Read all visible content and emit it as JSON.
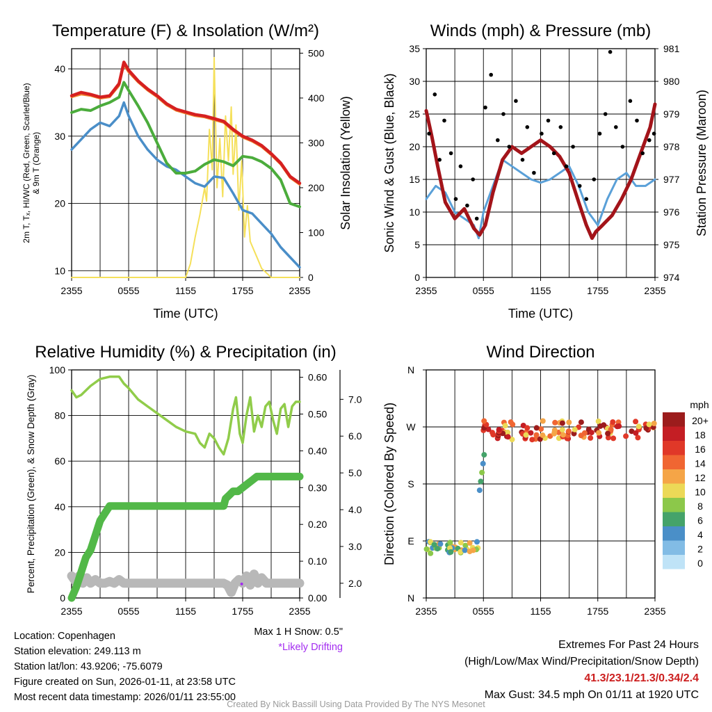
{
  "colors": {
    "red": "#d62020",
    "orange": "#f08a30",
    "green": "#4bac3c",
    "blue": "#4a8ec8",
    "yellow": "#f5e05a",
    "maroon": "#a3141a",
    "sonic_blue": "#5aa0d8",
    "rh_green": "#90cc4a",
    "precip_green": "#52b848",
    "snow_gray": "#b8b8b8",
    "credit_gray": "#999999",
    "extremes_red": "#cc1e1e",
    "drift_purple": "#a32cf0"
  },
  "chart_data": [
    {
      "id": "temp",
      "type": "line",
      "title": "Temperature (F) & Insolation (W/m²)",
      "xlabel": "Time (UTC)",
      "ylabel_lines": [
        "2m T, Tₓ, HI/WC (Red, Green, Scarlet/Blue)",
        "& 9m T (Orange)"
      ],
      "ylabel2": "Solar Insolation (Yellow)",
      "x_ticks": [
        "2355",
        "0555",
        "1155",
        "1755",
        "2355"
      ],
      "ylim": [
        9,
        43
      ],
      "y_ticks": [
        10,
        20,
        30,
        40
      ],
      "y2lim": [
        0,
        510
      ],
      "y2_ticks": [
        0,
        100,
        200,
        300,
        400,
        500
      ],
      "series": [
        {
          "name": "2m Temperature",
          "color": "red",
          "axis": "left",
          "width": 4.5,
          "hours": [
            0,
            1,
            2,
            3,
            4,
            5,
            5.5,
            6,
            7,
            8,
            9,
            10,
            11,
            12,
            13,
            14,
            15,
            16,
            17,
            18,
            19,
            20,
            21,
            22,
            23,
            24
          ],
          "values": [
            36,
            36.5,
            36.2,
            35.8,
            36,
            37.8,
            41,
            39.8,
            38.2,
            37,
            36,
            34.8,
            34,
            33.6,
            33.2,
            33,
            32.6,
            32.2,
            31,
            30,
            29.4,
            28.6,
            27.4,
            26,
            24,
            23
          ]
        },
        {
          "name": "9m Temperature",
          "color": "orange",
          "axis": "left",
          "width": 3,
          "hours": [
            0,
            1,
            2,
            3,
            4,
            5,
            5.5,
            6,
            7,
            8,
            9,
            10,
            11,
            12,
            13,
            14,
            15,
            16,
            17,
            18,
            19,
            20,
            21,
            22,
            23,
            24
          ],
          "values": [
            35.8,
            36.2,
            36,
            35.6,
            35.8,
            37.5,
            40.6,
            39.5,
            38,
            36.8,
            35.8,
            34.6,
            33.8,
            33.4,
            33,
            32.8,
            32.4,
            32,
            30.8,
            29.8,
            29.2,
            28.4,
            27.2,
            25.8,
            23.8,
            22.8
          ]
        },
        {
          "name": "Dewpoint",
          "color": "green",
          "axis": "left",
          "width": 4,
          "hours": [
            0,
            1,
            2,
            3,
            4,
            5,
            5.5,
            6,
            7,
            8,
            9,
            10,
            11,
            12,
            13,
            14,
            15,
            16,
            17,
            18,
            19,
            20,
            21,
            22,
            23,
            24
          ],
          "values": [
            33.5,
            34,
            33.8,
            34.5,
            35,
            35.8,
            38,
            36.8,
            34.5,
            32,
            29,
            26,
            24.5,
            24.5,
            24.8,
            25.8,
            26.5,
            26.2,
            25.6,
            27,
            26.8,
            26.2,
            25.2,
            23.5,
            20,
            19.5
          ]
        },
        {
          "name": "Wind Chill",
          "color": "blue",
          "axis": "left",
          "width": 3.5,
          "hours": [
            0,
            1,
            2,
            3,
            4,
            5,
            5.5,
            6,
            7,
            8,
            9,
            10,
            11,
            12,
            13,
            14,
            15,
            16,
            17,
            18,
            19,
            20,
            21,
            22,
            23,
            24
          ],
          "values": [
            28,
            29.5,
            31,
            32,
            31.5,
            33,
            35,
            33,
            30,
            28,
            26.5,
            25.5,
            25,
            24,
            23,
            22.5,
            24,
            23.8,
            21.5,
            19,
            18.5,
            17,
            15.5,
            13.5,
            12,
            10.5
          ]
        },
        {
          "name": "Solar Insolation",
          "color": "yellow",
          "axis": "right",
          "width": 2,
          "hours": [
            0,
            12,
            12.5,
            13,
            13.5,
            14,
            14.2,
            14.5,
            14.8,
            15,
            15.3,
            15.6,
            15.9,
            16.2,
            16.5,
            16.8,
            17,
            17.3,
            17.6,
            17.9,
            18.2,
            18.5,
            18.8,
            19.2,
            19.6,
            20,
            20.5,
            21,
            22,
            24
          ],
          "values": [
            0,
            0,
            30,
            90,
            140,
            200,
            170,
            330,
            240,
            490,
            200,
            310,
            180,
            360,
            260,
            380,
            230,
            340,
            150,
            260,
            90,
            160,
            80,
            60,
            40,
            20,
            10,
            0,
            0,
            0
          ]
        }
      ]
    },
    {
      "id": "wind",
      "type": "line",
      "title": "Winds (mph) & Pressure (mb)",
      "xlabel": "Time (UTC)",
      "ylabel": "Sonic Wind & Gust (Blue, Black)",
      "ylabel2": "Station Pressure (Maroon)",
      "x_ticks": [
        "2355",
        "0555",
        "1155",
        "1755",
        "2355"
      ],
      "ylim": [
        0,
        35
      ],
      "y_ticks": [
        0,
        5,
        10,
        15,
        20,
        25,
        30,
        35
      ],
      "y2lim": [
        974,
        981
      ],
      "y2_ticks": [
        974,
        975,
        976,
        977,
        978,
        979,
        980,
        981
      ],
      "series": [
        {
          "name": "Sonic Wind",
          "color": "sonic_blue",
          "axis": "left",
          "width": 3,
          "hours": [
            0,
            1,
            2,
            3,
            4,
            5,
            5.5,
            6,
            7,
            8,
            9,
            10,
            11,
            12,
            13,
            14,
            15,
            16,
            17,
            18,
            19,
            20,
            21,
            22,
            23,
            24
          ],
          "values": [
            12,
            14,
            13,
            10,
            9,
            8,
            6,
            10,
            14,
            18,
            17,
            16,
            15,
            14.5,
            15,
            16,
            17,
            14,
            10,
            8,
            12,
            15,
            16,
            14,
            14,
            15
          ]
        },
        {
          "name": "Wind Gust",
          "color": "black",
          "axis": "left",
          "style": "dots",
          "hours": [
            0.3,
            0.9,
            1.4,
            1.9,
            2.6,
            3.1,
            3.6,
            4.3,
            4.9,
            5.3,
            6.2,
            6.8,
            7.5,
            8.1,
            8.7,
            9.4,
            10.1,
            10.6,
            11.3,
            12.1,
            12.8,
            13.4,
            14.1,
            14.7,
            15.4,
            16.1,
            16.8,
            17.6,
            18.2,
            18.8,
            19.3,
            19.9,
            20.6,
            21.4,
            22.1,
            22.7,
            23.4,
            23.9
          ],
          "values": [
            22,
            28,
            18,
            24,
            19,
            12,
            17,
            11,
            15,
            9,
            26,
            31,
            21,
            25,
            20,
            27,
            18,
            23,
            16,
            22,
            24,
            19,
            23,
            17,
            20,
            14,
            12,
            15,
            22,
            25,
            34.5,
            23,
            20,
            27,
            24,
            19,
            21,
            22
          ]
        },
        {
          "name": "Station Pressure",
          "color": "maroon",
          "axis": "right",
          "width": 5,
          "hours": [
            0,
            0.6,
            1.2,
            2,
            3,
            4,
            5,
            5.6,
            6.2,
            7,
            8,
            9,
            10,
            11,
            12,
            13,
            14,
            15,
            16,
            16.8,
            17.4,
            17.8,
            18.5,
            19.5,
            20.5,
            21.5,
            22.5,
            23.5,
            24
          ],
          "values": [
            979.1,
            978.3,
            977.4,
            976.3,
            975.8,
            976.1,
            975.5,
            975.3,
            975.6,
            976.6,
            977.6,
            978.0,
            977.8,
            978.0,
            978.2,
            978.0,
            977.7,
            977.2,
            976.3,
            975.6,
            975.2,
            975.4,
            975.6,
            975.9,
            976.4,
            977.0,
            977.8,
            978.6,
            979.3
          ]
        }
      ]
    },
    {
      "id": "rh",
      "type": "line",
      "title": "Relative Humidity (%) & Precipitation (in)",
      "ylabel": "Percent, Precipitation (Green), & Snow Depth (Gray)",
      "x_ticks": [
        "2355",
        "0555",
        "1155",
        "1755",
        "2355"
      ],
      "ylim": [
        0,
        100
      ],
      "y_ticks": [
        0,
        20,
        40,
        60,
        80,
        100
      ],
      "y2lim": [
        0,
        0.62
      ],
      "y2_ticks": [
        "0.00",
        "0.10",
        "0.20",
        "0.30",
        "0.40",
        "0.50",
        "0.60"
      ],
      "y3lim": [
        1.6,
        7.8
      ],
      "y3_ticks": [
        "2.0",
        "3.0",
        "4.0",
        "5.0",
        "6.0",
        "7.0"
      ],
      "snow_note": "Max 1 H Snow: 0.5\"",
      "drift_note": "*Likely Drifting",
      "series": [
        {
          "name": "Relative Humidity",
          "color": "rh_green",
          "axis": "left",
          "width": 3.5,
          "hours": [
            0,
            0.5,
            1,
            2,
            3,
            4,
            5,
            5.5,
            6,
            7,
            8,
            9,
            10,
            11,
            12,
            13,
            13.5,
            14,
            14.5,
            15,
            15.5,
            16,
            16.5,
            17,
            17.3,
            17.7,
            18,
            18.4,
            18.8,
            19.2,
            19.6,
            20,
            20.4,
            20.8,
            21.2,
            21.6,
            22,
            22.4,
            22.8,
            23.2,
            23.6,
            24
          ],
          "values": [
            91,
            88,
            89,
            93,
            96,
            97,
            97,
            94,
            92,
            87,
            84,
            81,
            78,
            75,
            73,
            72,
            68,
            66,
            72,
            70,
            66,
            63,
            70,
            83,
            88,
            72,
            68,
            80,
            88,
            73,
            80,
            75,
            84,
            86,
            78,
            72,
            83,
            85,
            75,
            84,
            86,
            86
          ]
        },
        {
          "name": "Precipitation",
          "color": "precip_green",
          "axis": "right",
          "width": 11,
          "hours": [
            0,
            0.5,
            1,
            1.5,
            2,
            2.5,
            3,
            3.5,
            4,
            4.5,
            5,
            6,
            8,
            10,
            12,
            14,
            16,
            16.2,
            16.6,
            17,
            17.5,
            18,
            18.5,
            19,
            19.5,
            20,
            22,
            24
          ],
          "values": [
            0,
            0.03,
            0.07,
            0.11,
            0.13,
            0.17,
            0.21,
            0.23,
            0.25,
            0.25,
            0.25,
            0.25,
            0.25,
            0.25,
            0.25,
            0.25,
            0.25,
            0.27,
            0.28,
            0.29,
            0.29,
            0.3,
            0.31,
            0.32,
            0.33,
            0.33,
            0.33,
            0.33
          ]
        },
        {
          "name": "Snow Depth",
          "color": "snow_gray",
          "axis": "far-right",
          "width": 13,
          "hours": [
            0,
            0.4,
            0.8,
            1.2,
            1.6,
            2,
            2.5,
            3,
            3.5,
            4,
            4.5,
            5,
            5.5,
            6,
            7,
            8,
            9,
            10,
            11,
            12,
            13,
            14,
            15,
            16,
            16.4,
            16.8,
            17.2,
            17.6,
            18,
            18.4,
            18.8,
            19.2,
            19.6,
            20,
            20.5,
            21,
            22,
            23,
            24
          ],
          "values": [
            2.2,
            2.05,
            2.2,
            2.0,
            2.15,
            2.0,
            2.1,
            2.0,
            2.0,
            2.05,
            2.0,
            2.1,
            2.0,
            2.0,
            2.0,
            2.0,
            2.0,
            2.0,
            2.0,
            2.0,
            2.0,
            2.0,
            2.0,
            2.0,
            1.95,
            1.75,
            2.0,
            2.1,
            2.0,
            2.2,
            1.95,
            2.25,
            2.0,
            2.15,
            2.0,
            2.0,
            2.0,
            2.0,
            2.0
          ]
        }
      ],
      "drift_point": {
        "hour": 17.9,
        "value": 1.98
      }
    },
    {
      "id": "dir",
      "type": "scatter",
      "title": "Wind Direction",
      "ylabel": "Direction (Colored By Speed)",
      "x_ticks": [
        "2355",
        "0555",
        "1155",
        "1755",
        "2355"
      ],
      "y_ticks": [
        "N",
        "E",
        "S",
        "W",
        "N"
      ],
      "ylim_degrees": [
        0,
        360
      ],
      "legend": {
        "title": "mph",
        "labels": [
          "20+",
          "18",
          "16",
          "14",
          "12",
          "10",
          "8",
          "6",
          "4",
          "2",
          "0"
        ],
        "colors": [
          "#9c1c1c",
          "#c41e24",
          "#e03828",
          "#f06632",
          "#f5a547",
          "#ecd957",
          "#8cc84a",
          "#45a36a",
          "#4a8fc8",
          "#82bce5",
          "#bfe3f7"
        ]
      },
      "points_summary": {
        "early_hours": [
          0,
          5.5
        ],
        "early_direction_deg": [
          70,
          90
        ],
        "late_hours": [
          5.5,
          24
        ],
        "late_direction_deg": [
          250,
          280
        ]
      }
    }
  ],
  "footer": {
    "location": "Location: Copenhagen",
    "elevation": "Station elevation: 249.113 m",
    "latlon": "Station lat/lon: 43.9206; -75.6079",
    "created": "Figure created on Sun, 2026-01-11, at 23:58 UTC",
    "recent": "Most recent data timestamp: 2026/01/11 23:55:00"
  },
  "extremes": {
    "title": "Extremes For Past 24 Hours",
    "subtitle": "(High/Low/Max Wind/Precipitation/Snow Depth)",
    "values": "41.3/23.1/21.3/0.34/2.4",
    "gust": "Max Gust: 34.5 mph On 01/11 at 1920 UTC"
  },
  "credit": "Created By Nick Bassill Using Data Provided By The NYS Mesonet"
}
